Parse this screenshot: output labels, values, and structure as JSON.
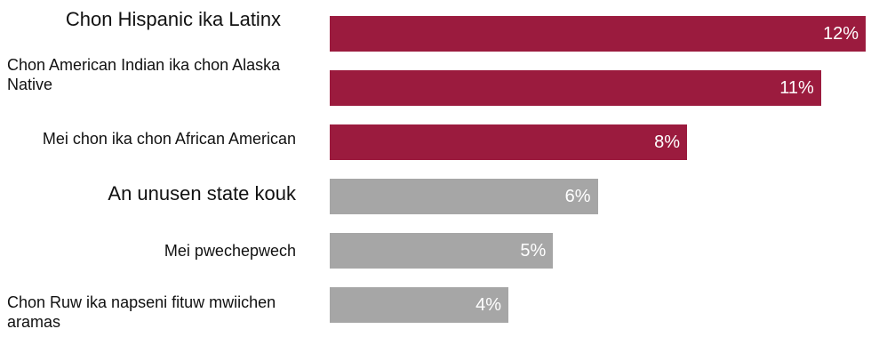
{
  "chart_data": {
    "type": "bar",
    "orientation": "horizontal",
    "categories": [
      "Chon Hispanic ika Latinx",
      "Chon American Indian ika chon Alaska Native",
      "Mei chon ika chon African American",
      "An unusen state kouk",
      "Mei pwechepwech",
      "Chon Ruw ika napseni fituw mwiichen aramas"
    ],
    "values": [
      12,
      11,
      8,
      6,
      5,
      4
    ],
    "value_labels": [
      "12%",
      "11%",
      "8%",
      "6%",
      "5%",
      "4%"
    ],
    "unit": "%",
    "bar_colors": [
      "#9b1b3e",
      "#9b1b3e",
      "#9b1b3e",
      "#a6a6a6",
      "#a6a6a6",
      "#a6a6a6"
    ],
    "xlim": [
      0,
      12
    ],
    "grid": false,
    "title": "",
    "xlabel": "",
    "ylabel": ""
  }
}
